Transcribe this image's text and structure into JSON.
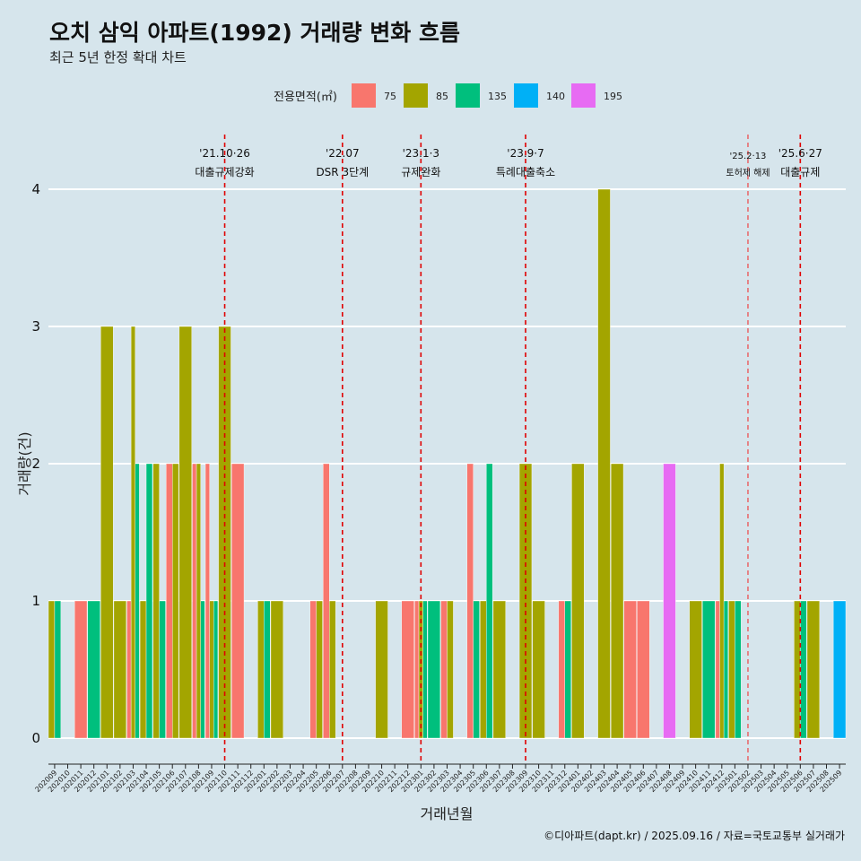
{
  "chart_data": {
    "type": "bar",
    "title": "오치 삼익 아파트(1992) 거래량 변화 흐름",
    "subtitle": "최근 5년 한정 확대 차트",
    "xlabel": "거래년월",
    "ylabel": "거래량(건)",
    "ylim": [
      0,
      4
    ],
    "y_ticks": [
      "0",
      "1",
      "2",
      "3",
      "4"
    ],
    "grid": true,
    "legend": {
      "title": "전용면적(㎡)",
      "placement": "top",
      "entries": [
        {
          "label": "75",
          "color": "#F8766D"
        },
        {
          "label": "85",
          "color": "#A3A500"
        },
        {
          "label": "135",
          "color": "#00BF7D"
        },
        {
          "label": "140",
          "color": "#00B0F6"
        },
        {
          "label": "195",
          "color": "#E76BF3"
        }
      ]
    },
    "categories": [
      "202009",
      "202010",
      "202011",
      "202012",
      "202101",
      "202102",
      "202103",
      "202104",
      "202105",
      "202106",
      "202107",
      "202108",
      "202109",
      "202110",
      "202111",
      "202112",
      "202201",
      "202202",
      "202203",
      "202204",
      "202205",
      "202206",
      "202207",
      "202208",
      "202209",
      "202210",
      "202211",
      "202212",
      "202301",
      "202302",
      "202303",
      "202304",
      "202305",
      "202306",
      "202307",
      "202308",
      "202309",
      "202310",
      "202311",
      "202312",
      "202401",
      "202402",
      "202403",
      "202404",
      "202405",
      "202406",
      "202407",
      "202408",
      "202409",
      "202410",
      "202411",
      "202412",
      "202501",
      "202502",
      "202503",
      "202504",
      "202505",
      "202506",
      "202507",
      "202508",
      "202509"
    ],
    "bars": [
      {
        "month": "202009",
        "groups": [
          {
            "area": "85",
            "value": 1
          },
          {
            "area": "135",
            "value": 1
          }
        ]
      },
      {
        "month": "202011",
        "groups": [
          {
            "area": "75",
            "value": 1
          }
        ]
      },
      {
        "month": "202012",
        "groups": [
          {
            "area": "135",
            "value": 1
          }
        ]
      },
      {
        "month": "202101",
        "groups": [
          {
            "area": "85",
            "value": 3
          }
        ]
      },
      {
        "month": "202102",
        "groups": [
          {
            "area": "85",
            "value": 1
          }
        ]
      },
      {
        "month": "202103",
        "groups": [
          {
            "area": "75",
            "value": 1
          },
          {
            "area": "85",
            "value": 3
          },
          {
            "area": "135",
            "value": 2
          }
        ]
      },
      {
        "month": "202104",
        "groups": [
          {
            "area": "85",
            "value": 1
          },
          {
            "area": "135",
            "value": 2
          }
        ]
      },
      {
        "month": "202105",
        "groups": [
          {
            "area": "85",
            "value": 2
          },
          {
            "area": "135",
            "value": 1
          }
        ]
      },
      {
        "month": "202106",
        "groups": [
          {
            "area": "75",
            "value": 2
          },
          {
            "area": "85",
            "value": 2
          }
        ]
      },
      {
        "month": "202107",
        "groups": [
          {
            "area": "85",
            "value": 3
          }
        ]
      },
      {
        "month": "202108",
        "groups": [
          {
            "area": "75",
            "value": 2
          },
          {
            "area": "85",
            "value": 2
          },
          {
            "area": "135",
            "value": 1
          }
        ]
      },
      {
        "month": "202109",
        "groups": [
          {
            "area": "75",
            "value": 2
          },
          {
            "area": "85",
            "value": 1
          },
          {
            "area": "135",
            "value": 1
          }
        ]
      },
      {
        "month": "202110",
        "groups": [
          {
            "area": "85",
            "value": 3
          }
        ]
      },
      {
        "month": "202111",
        "groups": [
          {
            "area": "75",
            "value": 2
          }
        ]
      },
      {
        "month": "202201",
        "groups": [
          {
            "area": "85",
            "value": 1
          },
          {
            "area": "135",
            "value": 1
          }
        ]
      },
      {
        "month": "202202",
        "groups": [
          {
            "area": "85",
            "value": 1
          }
        ]
      },
      {
        "month": "202205",
        "groups": [
          {
            "area": "75",
            "value": 1
          },
          {
            "area": "85",
            "value": 1
          }
        ]
      },
      {
        "month": "202206",
        "groups": [
          {
            "area": "75",
            "value": 2
          },
          {
            "area": "85",
            "value": 1
          }
        ]
      },
      {
        "month": "202210",
        "groups": [
          {
            "area": "85",
            "value": 1
          }
        ]
      },
      {
        "month": "202212",
        "groups": [
          {
            "area": "75",
            "value": 1
          }
        ]
      },
      {
        "month": "202301",
        "groups": [
          {
            "area": "75",
            "value": 1
          },
          {
            "area": "85",
            "value": 1
          },
          {
            "area": "135",
            "value": 1
          }
        ]
      },
      {
        "month": "202302",
        "groups": [
          {
            "area": "135",
            "value": 1
          }
        ]
      },
      {
        "month": "202303",
        "groups": [
          {
            "area": "75",
            "value": 1
          },
          {
            "area": "85",
            "value": 1
          }
        ]
      },
      {
        "month": "202305",
        "groups": [
          {
            "area": "75",
            "value": 2
          },
          {
            "area": "135",
            "value": 1
          }
        ]
      },
      {
        "month": "202306",
        "groups": [
          {
            "area": "85",
            "value": 1
          },
          {
            "area": "135",
            "value": 2
          }
        ]
      },
      {
        "month": "202307",
        "groups": [
          {
            "area": "85",
            "value": 1
          }
        ]
      },
      {
        "month": "202309",
        "groups": [
          {
            "area": "85",
            "value": 2
          }
        ]
      },
      {
        "month": "202310",
        "groups": [
          {
            "area": "85",
            "value": 1
          }
        ]
      },
      {
        "month": "202312",
        "groups": [
          {
            "area": "75",
            "value": 1
          },
          {
            "area": "135",
            "value": 1
          }
        ]
      },
      {
        "month": "202401",
        "groups": [
          {
            "area": "85",
            "value": 2
          }
        ]
      },
      {
        "month": "202403",
        "groups": [
          {
            "area": "85",
            "value": 4
          }
        ]
      },
      {
        "month": "202404",
        "groups": [
          {
            "area": "85",
            "value": 2
          }
        ]
      },
      {
        "month": "202405",
        "groups": [
          {
            "area": "75",
            "value": 1
          }
        ]
      },
      {
        "month": "202406",
        "groups": [
          {
            "area": "75",
            "value": 1
          }
        ]
      },
      {
        "month": "202408",
        "groups": [
          {
            "area": "195",
            "value": 2
          }
        ]
      },
      {
        "month": "202410",
        "groups": [
          {
            "area": "85",
            "value": 1
          }
        ]
      },
      {
        "month": "202411",
        "groups": [
          {
            "area": "135",
            "value": 1
          }
        ]
      },
      {
        "month": "202412",
        "groups": [
          {
            "area": "75",
            "value": 1
          },
          {
            "area": "85",
            "value": 2
          },
          {
            "area": "135",
            "value": 1
          }
        ]
      },
      {
        "month": "202501",
        "groups": [
          {
            "area": "85",
            "value": 1
          },
          {
            "area": "135",
            "value": 1
          }
        ]
      },
      {
        "month": "202506",
        "groups": [
          {
            "area": "85",
            "value": 1
          },
          {
            "area": "135",
            "value": 1
          }
        ]
      },
      {
        "month": "202507",
        "groups": [
          {
            "area": "85",
            "value": 1
          }
        ]
      },
      {
        "month": "202509",
        "groups": [
          {
            "area": "140",
            "value": 1
          }
        ]
      }
    ],
    "annotations": [
      {
        "month": "202110",
        "line1": "'21.10·26",
        "line2": "대출규제강화",
        "style": "normal"
      },
      {
        "month": "202207",
        "line1": "'22.07",
        "line2": "DSR 3단계",
        "style": "normal"
      },
      {
        "month": "202301",
        "line1": "'23.1·3",
        "line2": "규제완화",
        "style": "normal"
      },
      {
        "month": "202309",
        "line1": "'23.9·7",
        "line2": "특례대출축소",
        "style": "normal"
      },
      {
        "month": "202502",
        "line1": "'25.2·13",
        "line2": "토허제 해제",
        "style": "small"
      },
      {
        "month": "202506",
        "line1": "'25.6·27",
        "line2": "대출규제",
        "style": "normal"
      }
    ],
    "caption": "©디아파트(dapt.kr) / 2025.09.16 / 자료=국토교통부 실거래가"
  }
}
